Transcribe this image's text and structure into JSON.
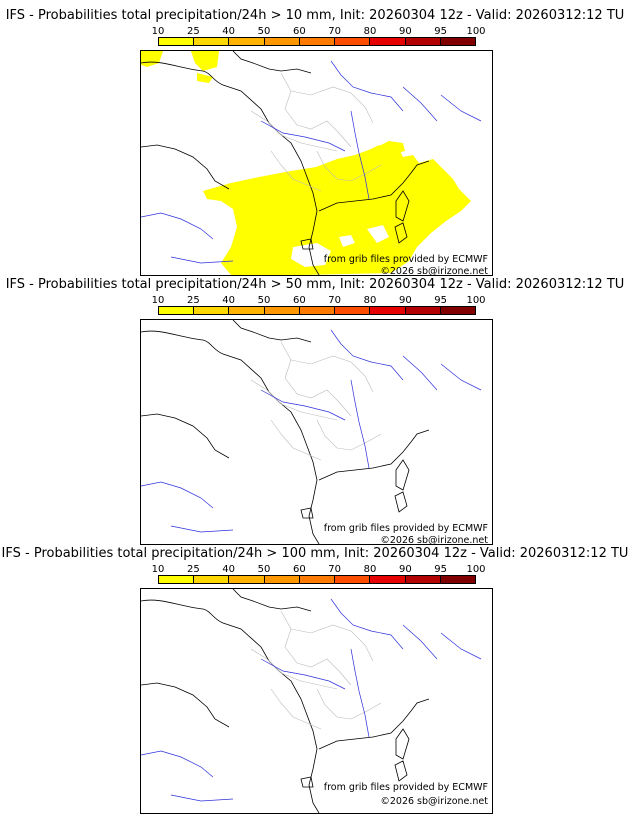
{
  "legend_ticks": [
    "10",
    "25",
    "40",
    "50",
    "60",
    "70",
    "80",
    "90",
    "95",
    "100"
  ],
  "legend_colors": [
    "#ffff00",
    "#ffd700",
    "#ffb300",
    "#ff9800",
    "#ff7a00",
    "#ff4d00",
    "#e60000",
    "#b30000",
    "#800000"
  ],
  "credits": {
    "source": "from grib files provided by ECMWF",
    "copyright": "©2026 sb@irizone.net"
  },
  "panels": [
    {
      "title": "IFS - Probabilities total precipitation/24h > 10 mm, Init: 20260304 12z - Valid: 20260312:12 TU",
      "threshold_mm": 10,
      "probability_area": "south-east France and Mediterranean, coverage level 10-25%"
    },
    {
      "title": "IFS - Probabilities total precipitation/24h > 50 mm, Init: 20260304 12z - Valid: 20260312:12 TU",
      "threshold_mm": 50,
      "probability_area": "none"
    },
    {
      "title": "IFS - Probabilities total precipitation/24h > 100 mm, Init: 20260304 12z - Valid: 20260312:12 TU",
      "threshold_mm": 100,
      "probability_area": "none"
    }
  ]
}
